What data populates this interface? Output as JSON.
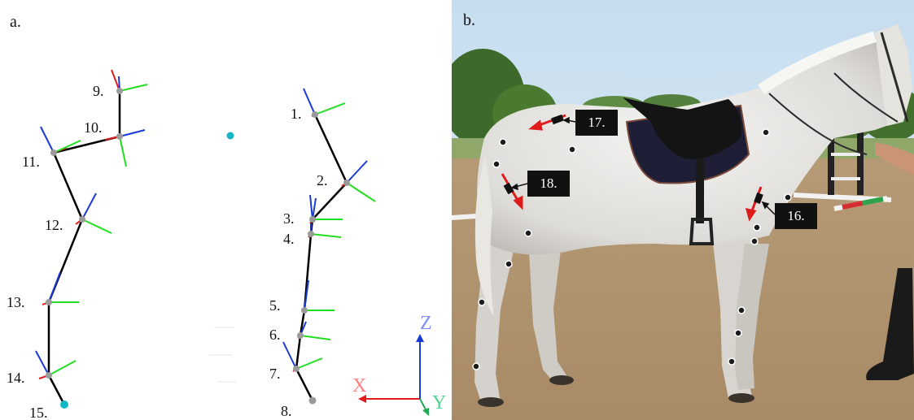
{
  "panel_a": {
    "label": "a.",
    "markers": [
      {
        "id": "1",
        "text": "1."
      },
      {
        "id": "2",
        "text": "2."
      },
      {
        "id": "3",
        "text": "3."
      },
      {
        "id": "4",
        "text": "4."
      },
      {
        "id": "5",
        "text": "5."
      },
      {
        "id": "6",
        "text": "6."
      },
      {
        "id": "7",
        "text": "7."
      },
      {
        "id": "8",
        "text": "8."
      },
      {
        "id": "9",
        "text": "9."
      },
      {
        "id": "10",
        "text": "10."
      },
      {
        "id": "11",
        "text": "11."
      },
      {
        "id": "12",
        "text": "12."
      },
      {
        "id": "13",
        "text": "13."
      },
      {
        "id": "14",
        "text": "14."
      },
      {
        "id": "15",
        "text": "15."
      }
    ],
    "axes": {
      "x": "X",
      "y": "Y",
      "z": "Z"
    },
    "colors": {
      "x_axis": "#e01b1b",
      "y_axis": "#22dd22",
      "z_axis": "#1a3ad8",
      "marker": "#9a9a9a",
      "free_marker": "#14b8c4"
    }
  },
  "panel_b": {
    "label": "b.",
    "callouts": [
      {
        "id": "16",
        "text": "16."
      },
      {
        "id": "17",
        "text": "17."
      },
      {
        "id": "18",
        "text": "18."
      }
    ],
    "colors": {
      "callout_bg": "#111111",
      "callout_text": "#ffffff",
      "arrow": "#e01b1b"
    }
  }
}
